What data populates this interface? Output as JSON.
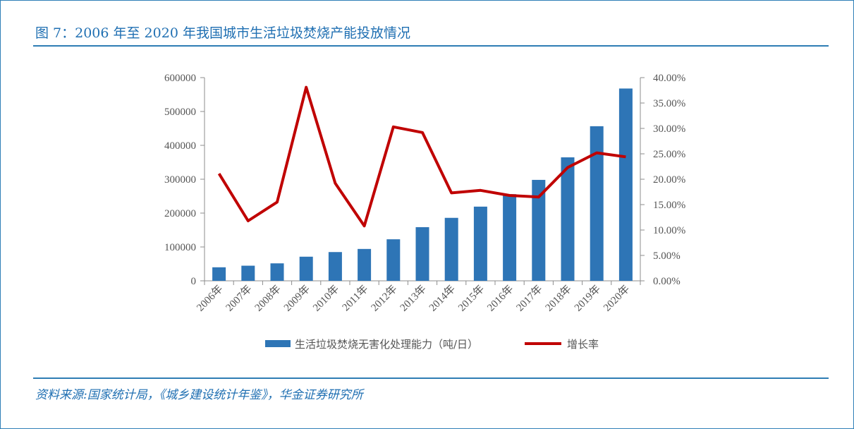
{
  "page": {
    "title": "图 7：2006 年至 2020 年我国城市生活垃圾焚烧产能投放情况",
    "source": "资料来源:国家统计局，《城乡建设统计年鉴》，华金证券研究所"
  },
  "colors": {
    "bar": "#2e75b6",
    "line": "#c00000",
    "accent": "#1f6fb2"
  },
  "chart_data": {
    "type": "bar",
    "categories": [
      "2006年",
      "2007年",
      "2008年",
      "2009年",
      "2010年",
      "2011年",
      "2012年",
      "2013年",
      "2014年",
      "2015年",
      "2016年",
      "2017年",
      "2018年",
      "2019年",
      "2020年"
    ],
    "series": [
      {
        "name": "生活垃圾焚烧无害化处理能力（吨/日）",
        "type": "bar",
        "axis": "left",
        "values": [
          39966,
          44682,
          51606,
          71253,
          84940,
          94114,
          122649,
          158488,
          185957,
          219080,
          255850,
          298062,
          364595,
          456499,
          567804
        ]
      },
      {
        "name": "增长率",
        "type": "line",
        "axis": "right",
        "values": [
          0.211,
          0.118,
          0.155,
          0.381,
          0.192,
          0.108,
          0.303,
          0.292,
          0.173,
          0.178,
          0.168,
          0.165,
          0.223,
          0.252,
          0.244
        ]
      }
    ],
    "yleft": {
      "lim": [
        0,
        600000
      ],
      "ticks": [
        "0",
        "100000",
        "200000",
        "300000",
        "400000",
        "500000",
        "600000"
      ]
    },
    "yright": {
      "lim": [
        0,
        0.4
      ],
      "ticks": [
        "0.00%",
        "5.00%",
        "10.00%",
        "15.00%",
        "20.00%",
        "25.00%",
        "30.00%",
        "35.00%",
        "40.00%"
      ]
    },
    "grid": false,
    "legend_position": "bottom"
  }
}
